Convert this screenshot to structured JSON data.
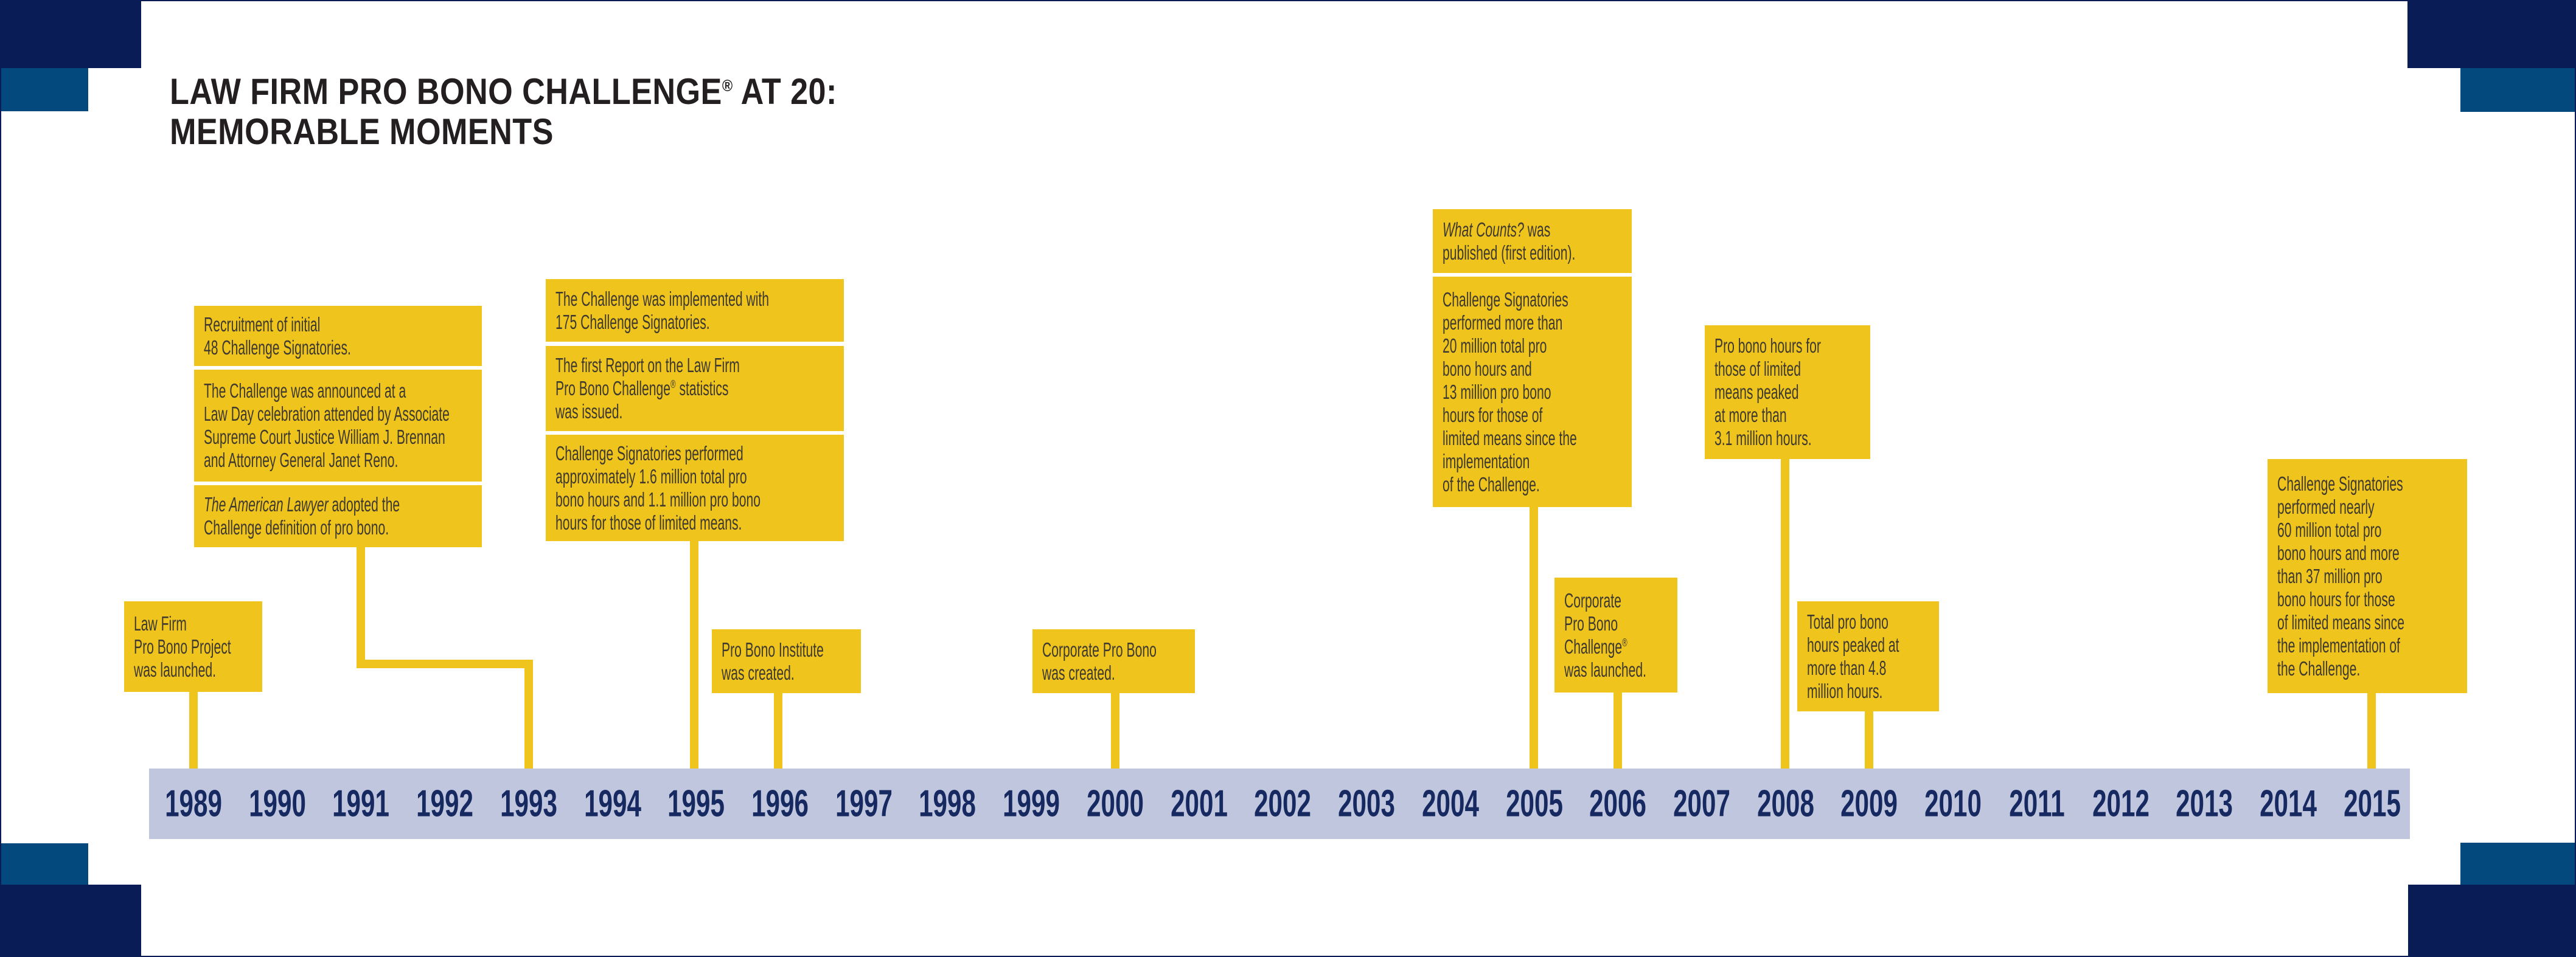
{
  "title": {
    "line1": "LAW FIRM PRO BONO CHALLENGE® AT 20:",
    "line2": "MEMORABLE MOMENTS"
  },
  "timeline": {
    "years": [
      "1989",
      "1990",
      "1991",
      "1992",
      "1993",
      "1994",
      "1995",
      "1996",
      "1997",
      "1998",
      "1999",
      "2000",
      "2001",
      "2002",
      "2003",
      "2004",
      "2005",
      "2006",
      "2007",
      "2008",
      "2009",
      "2010",
      "2011",
      "2012",
      "2013",
      "2014",
      "2015"
    ]
  },
  "events": [
    {
      "year": "1989",
      "boxes": [
        [
          "Law Firm",
          "Pro Bono Project",
          "was launched."
        ]
      ]
    },
    {
      "year": "1993",
      "boxes": [
        [
          "Recruitment of initial",
          "48 Challenge Signatories."
        ],
        [
          "The Challenge was announced at a",
          "Law Day celebration attended by Associate",
          "Supreme Court Justice William J. Brennan",
          "and Attorney General Janet Reno."
        ],
        [
          "*The American Lawyer* adopted the",
          "Challenge definition of pro bono."
        ]
      ]
    },
    {
      "year": "1995",
      "boxes": [
        [
          "The Challenge was implemented with",
          "175 Challenge Signatories."
        ],
        [
          "The first Report on the Law Firm",
          "Pro Bono Challenge® statistics",
          "was issued."
        ],
        [
          "Challenge Signatories performed",
          "approximately 1.6 million total pro",
          "bono hours and 1.1 million pro bono",
          "hours for those of limited means."
        ]
      ]
    },
    {
      "year": "1996",
      "boxes": [
        [
          "Pro Bono Institute",
          "was created."
        ]
      ]
    },
    {
      "year": "2000",
      "boxes": [
        [
          "Corporate Pro Bono",
          "was created."
        ]
      ]
    },
    {
      "year": "2005",
      "boxes": [
        [
          "*What Counts?* was",
          "published (first edition)."
        ],
        [
          "Challenge Signatories",
          "performed more than",
          "20 million total pro",
          "bono hours and",
          "13 million pro bono",
          "hours for those of",
          "limited means since the",
          "implementation",
          "of the Challenge."
        ]
      ]
    },
    {
      "year": "2006",
      "boxes": [
        [
          "Corporate",
          "Pro Bono",
          "Challenge®",
          "was launched."
        ]
      ]
    },
    {
      "year": "2008",
      "boxes": [
        [
          "Pro bono hours for",
          "those of limited",
          "means peaked",
          "at more than",
          "3.1 million hours."
        ]
      ]
    },
    {
      "year": "2009",
      "boxes": [
        [
          "Total pro bono",
          "hours peaked at",
          "more than 4.8",
          "million hours."
        ]
      ]
    },
    {
      "year": "2015",
      "boxes": [
        [
          "Challenge Signatories",
          "performed nearly",
          "60 million total pro",
          "bono hours and more",
          "than 37 million pro",
          "bono hours for those",
          "of limited means since",
          "the implementation of",
          "the Challenge."
        ]
      ]
    }
  ],
  "colors": {
    "accent_yellow": "#efc41d",
    "band_blue": "#bfc6dd",
    "corner_navy": "#0a1c55",
    "corner_steel_blue": "#04497e",
    "year_navy": "#172961",
    "title_charcoal": "#231f20",
    "box_text": "#3e3930"
  }
}
